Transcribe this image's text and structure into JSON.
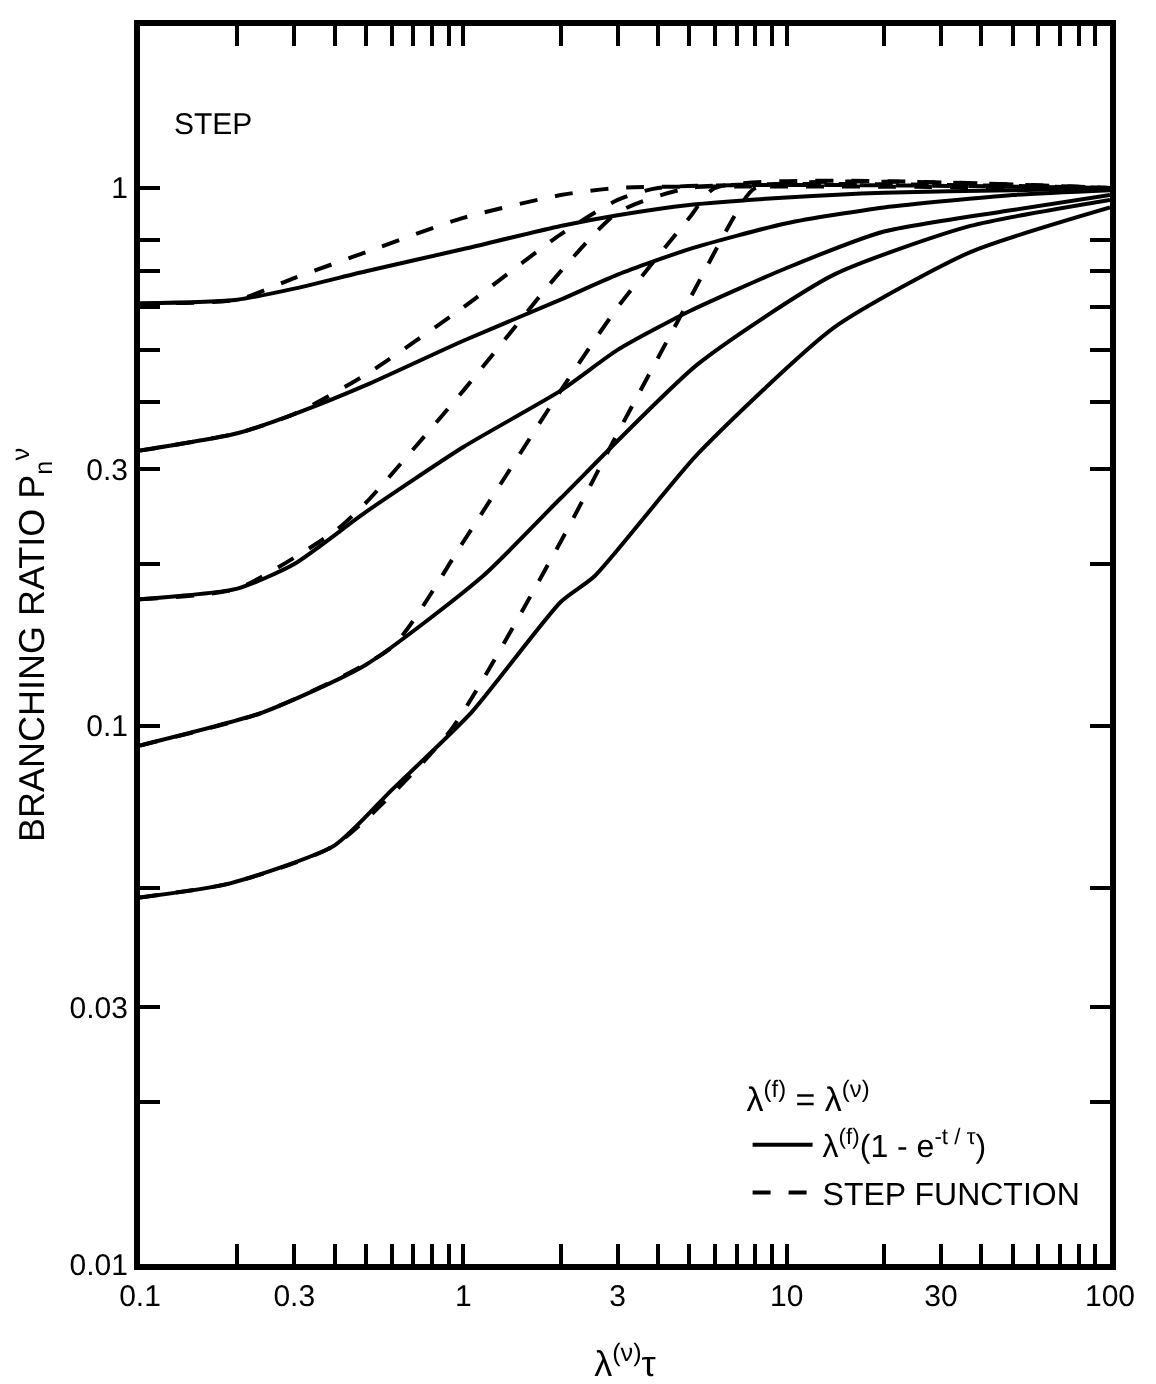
{
  "chart_data": {
    "type": "line",
    "xlabel": "λ$^{(ν)}$τ",
    "ylabel": "BRANCHING RATIO P$_{n}$$^{ν}$",
    "legend_title": "λ$^{(f)}$ = λ$^{(ν)}$",
    "annotations": [
      "STEP"
    ],
    "log": "xy",
    "grid": false,
    "legend": "bottom right",
    "marker": "none",
    "xlim": [
      0.1,
      100
    ],
    "ylim": [
      0.01,
      2
    ],
    "xticks": [
      0.1,
      {
        "value": 0.2,
        "label": null
      },
      0.3,
      {
        "value": 0.4,
        "label": null
      },
      {
        "value": 0.5,
        "label": null
      },
      {
        "value": 0.6,
        "label": null
      },
      {
        "value": 0.7,
        "label": null
      },
      {
        "value": 0.8,
        "label": null
      },
      {
        "value": 0.9,
        "label": null
      },
      1,
      {
        "value": 2,
        "label": null
      },
      3,
      {
        "value": 4,
        "label": null
      },
      {
        "value": 5,
        "label": null
      },
      {
        "value": 6,
        "label": null
      },
      {
        "value": 7,
        "label": null
      },
      {
        "value": 8,
        "label": null
      },
      {
        "value": 9,
        "label": null
      },
      10,
      {
        "value": 20,
        "label": null
      },
      30,
      {
        "value": 40,
        "label": null
      },
      {
        "value": 50,
        "label": null
      },
      {
        "value": 60,
        "label": null
      },
      {
        "value": 70,
        "label": null
      },
      {
        "value": 80,
        "label": null
      },
      {
        "value": 90,
        "label": null
      },
      100
    ],
    "yticks": [
      0.01,
      {
        "value": 0.02,
        "label": null
      },
      0.03,
      {
        "value": 0.05,
        "label": null
      },
      0.1,
      {
        "value": 0.2,
        "label": null
      },
      0.3,
      {
        "value": 0.4,
        "label": null
      },
      {
        "value": 0.5,
        "label": null
      },
      {
        "value": 0.6,
        "label": null
      },
      {
        "value": 0.7,
        "label": null
      },
      {
        "value": 0.8,
        "label": null
      },
      1
    ],
    "series": [
      {
        "name": "λ$^{(f)}$(1 - e$^{-t / τ}$)",
        "color": "#000000",
        "line_style": "solid",
        "x": [
          0.1,
          0.2,
          0.3,
          0.5,
          1,
          2,
          3,
          5,
          10,
          20,
          50,
          100
        ],
        "values": [
          0.61,
          0.62,
          0.65,
          0.7,
          0.77,
          0.85,
          0.89,
          0.93,
          0.96,
          0.98,
          0.99,
          1.0
        ]
      },
      {
        "color": "#000000",
        "line_style": "solid",
        "x": [
          0.1,
          0.2,
          0.3,
          0.5,
          1,
          2,
          3,
          5,
          10,
          20,
          50,
          100
        ],
        "values": [
          0.325,
          0.35,
          0.38,
          0.43,
          0.52,
          0.62,
          0.69,
          0.77,
          0.86,
          0.92,
          0.97,
          0.99
        ]
      },
      {
        "color": "#000000",
        "line_style": "solid",
        "x": [
          0.1,
          0.2,
          0.3,
          0.5,
          1,
          2,
          3,
          5,
          10,
          20,
          50,
          100
        ],
        "values": [
          0.172,
          0.18,
          0.2,
          0.25,
          0.33,
          0.42,
          0.5,
          0.59,
          0.71,
          0.83,
          0.91,
          0.97
        ]
      },
      {
        "color": "#000000",
        "line_style": "solid",
        "x": [
          0.1,
          0.24,
          0.5,
          1.15,
          2,
          5.3,
          14,
          37,
          100
        ],
        "values": [
          0.092,
          0.106,
          0.13,
          0.19,
          0.265,
          0.47,
          0.69,
          0.85,
          0.95
        ]
      },
      {
        "color": "#000000",
        "line_style": "solid",
        "x": [
          0.1,
          0.19,
          0.4,
          0.6,
          1.06,
          2,
          2.55,
          5.3,
          14,
          37,
          100
        ],
        "values": [
          0.048,
          0.051,
          0.06,
          0.076,
          0.106,
          0.17,
          0.19,
          0.32,
          0.55,
          0.76,
          0.92
        ]
      },
      {
        "name": "STEP FUNCTION",
        "color": "#000000",
        "line_style": "dashed",
        "x": [
          0.1,
          0.2,
          0.3,
          0.5,
          1,
          2,
          3,
          100
        ],
        "values": [
          0.61,
          0.62,
          0.68,
          0.76,
          0.88,
          0.97,
          1.0,
          1.0
        ]
      },
      {
        "color": "#000000",
        "line_style": "dashed",
        "x": [
          0.1,
          0.2,
          0.3,
          0.5,
          1,
          2,
          3,
          4,
          100
        ],
        "values": [
          0.325,
          0.35,
          0.38,
          0.45,
          0.6,
          0.82,
          0.95,
          1.0,
          1.0
        ]
      },
      {
        "color": "#000000",
        "line_style": "dashed",
        "x": [
          0.1,
          0.2,
          0.4,
          0.5,
          1,
          2,
          3,
          5,
          100
        ],
        "values": [
          0.172,
          0.18,
          0.23,
          0.26,
          0.42,
          0.7,
          0.9,
          1.0,
          1.0
        ]
      },
      {
        "color": "#000000",
        "line_style": "dashed",
        "x": [
          0.1,
          0.24,
          0.6,
          1,
          2,
          3,
          5,
          6,
          100
        ],
        "values": [
          0.092,
          0.106,
          0.14,
          0.22,
          0.42,
          0.6,
          0.88,
          1.0,
          1.0
        ]
      },
      {
        "color": "#000000",
        "line_style": "dashed",
        "x": [
          0.1,
          0.19,
          0.4,
          0.9,
          2,
          3,
          5,
          7,
          8,
          100
        ],
        "values": [
          0.048,
          0.051,
          0.06,
          0.097,
          0.22,
          0.35,
          0.62,
          0.9,
          1.0,
          1.0
        ]
      }
    ]
  }
}
